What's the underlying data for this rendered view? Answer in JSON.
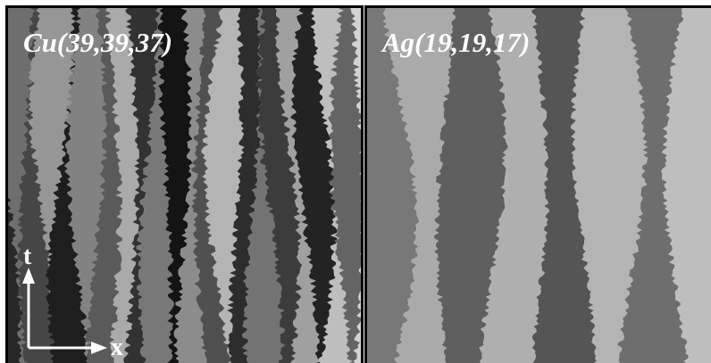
{
  "panels": [
    {
      "label": "Cu(39,39,37)"
    },
    {
      "label": "Ag(19,19,17)"
    }
  ],
  "axes": {
    "vertical": "t",
    "horizontal": "x"
  }
}
